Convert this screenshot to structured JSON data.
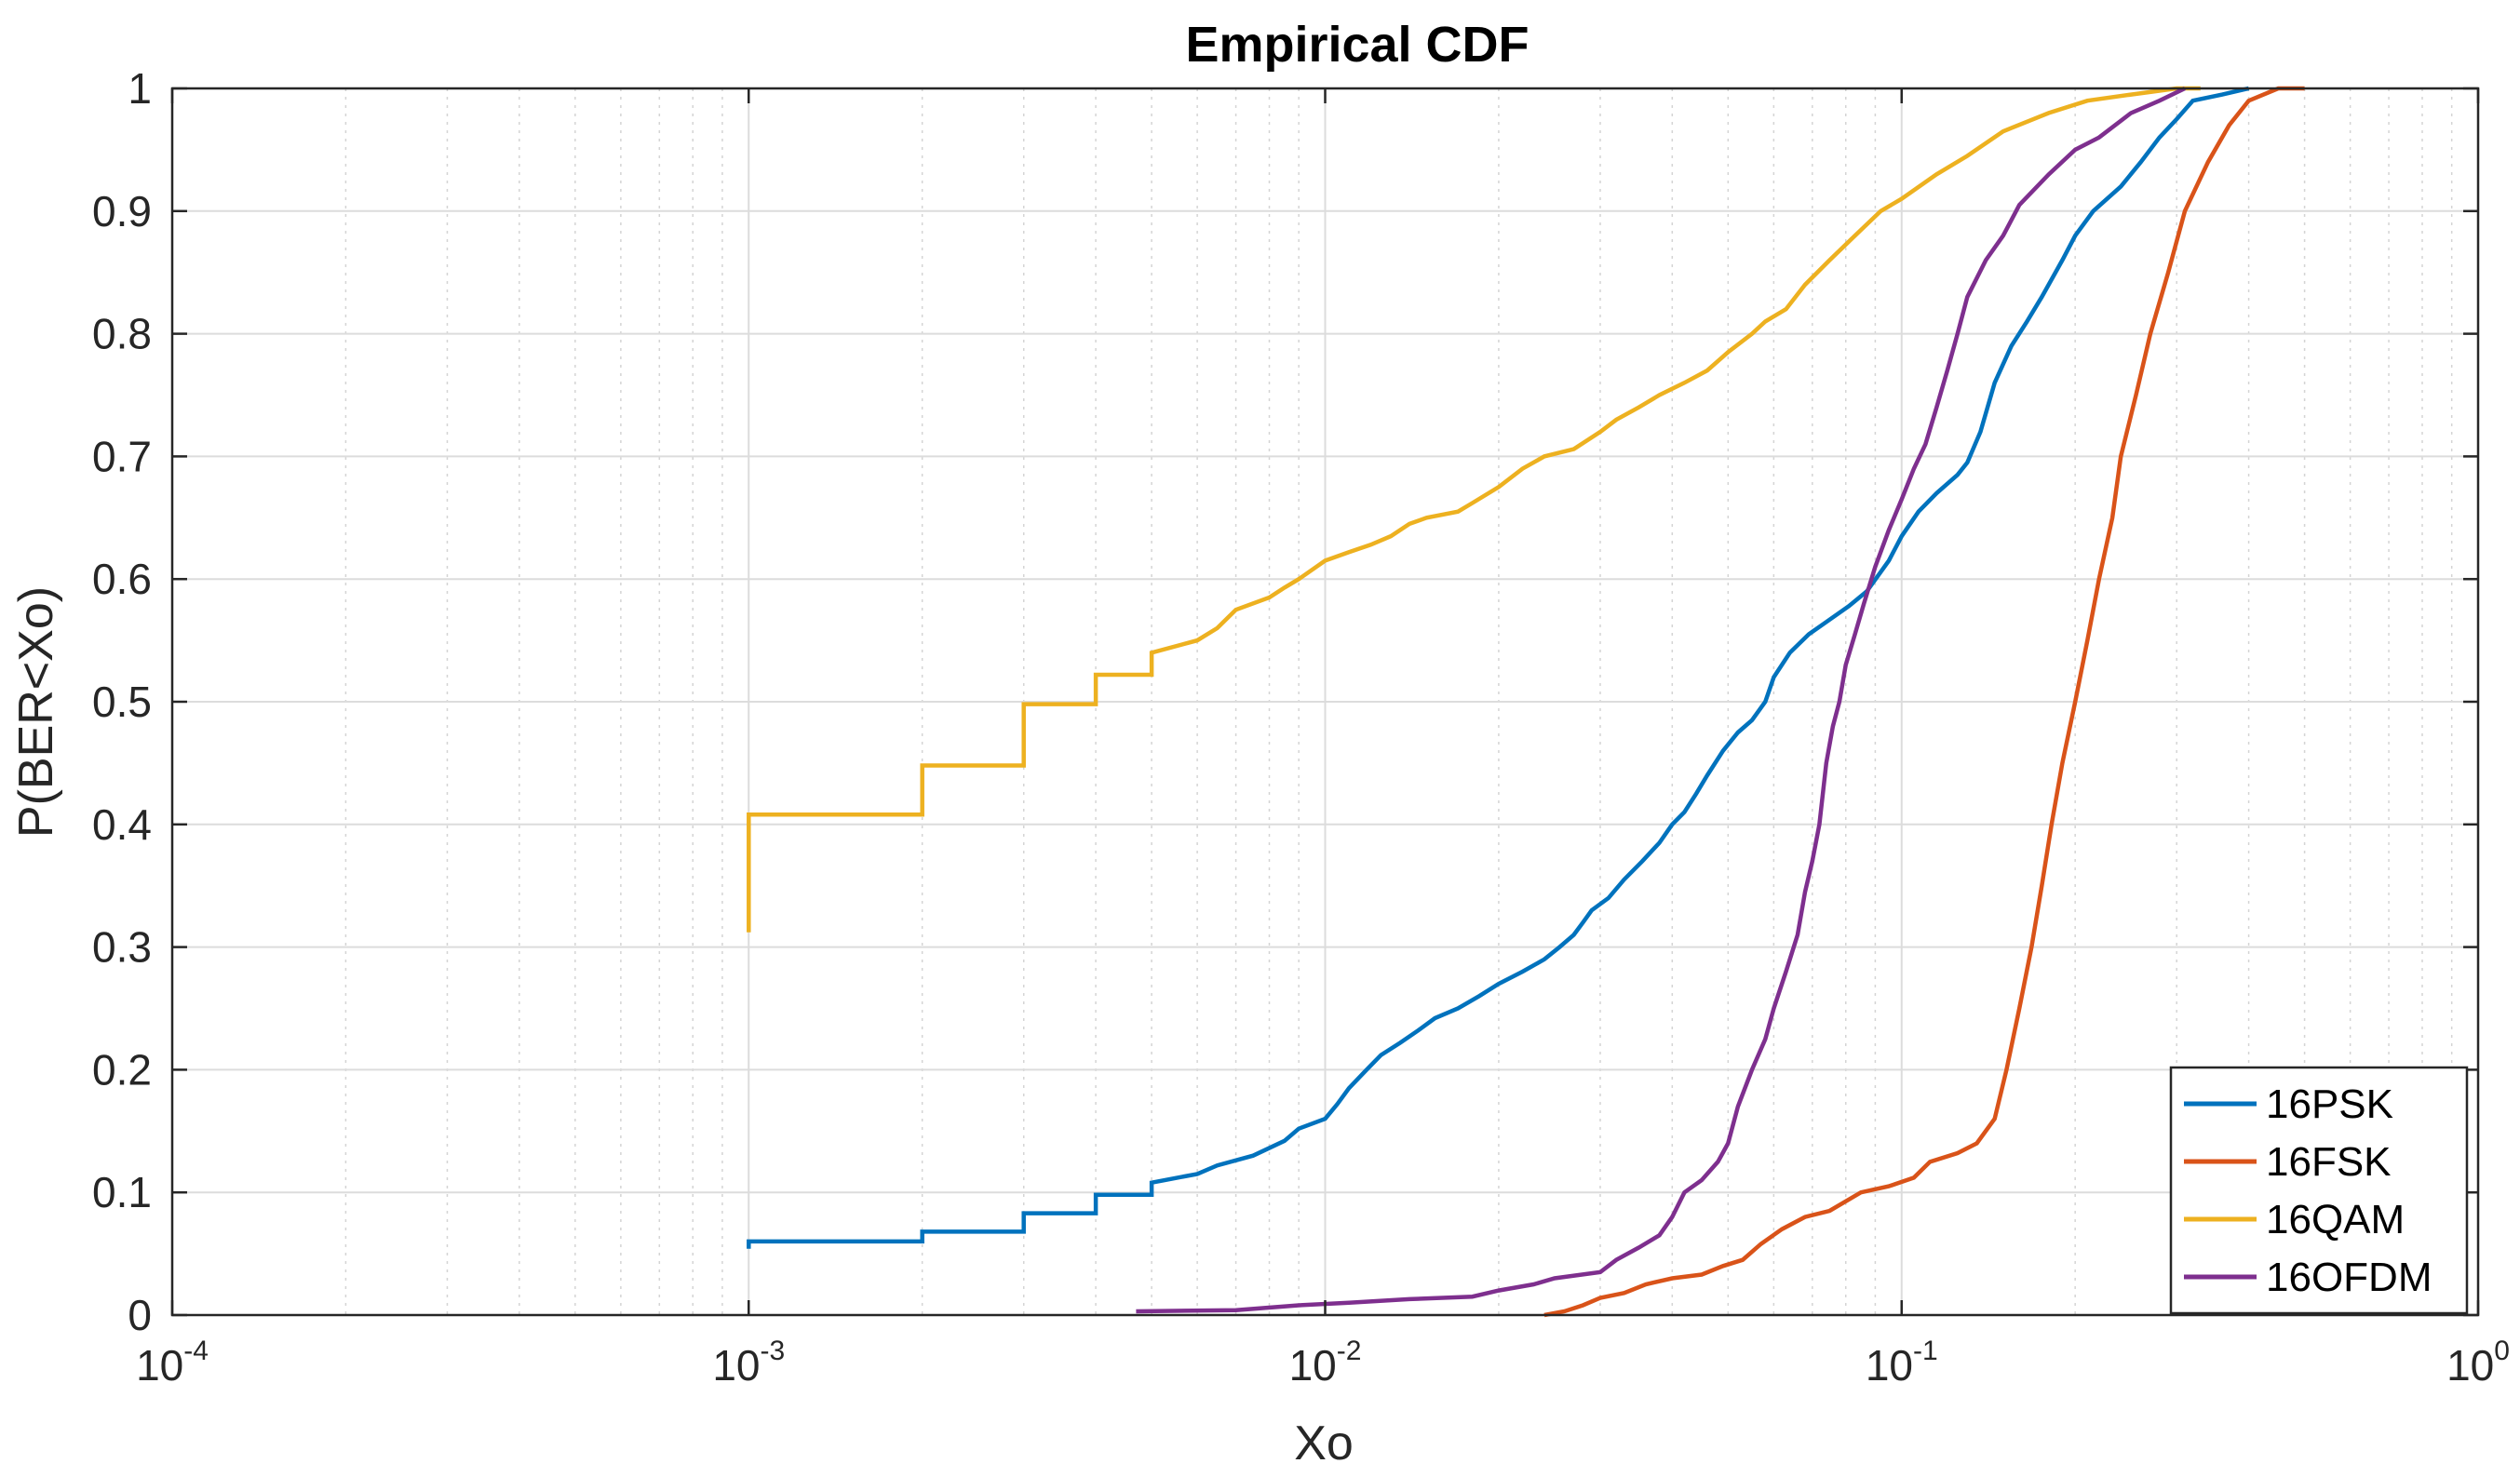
{
  "chart_data": {
    "type": "line",
    "title": "Empirical CDF",
    "xlabel": "Xo",
    "ylabel": "P(BER<Xo)",
    "xscale": "log",
    "xlim": [
      0.0001,
      1
    ],
    "ylim": [
      0,
      1
    ],
    "grid": true,
    "legend_position": "bottom-right",
    "x_ticks": [
      {
        "value": 0.0001,
        "base": "10",
        "exponent": "-4"
      },
      {
        "value": 0.001,
        "base": "10",
        "exponent": "-3"
      },
      {
        "value": 0.01,
        "base": "10",
        "exponent": "-2"
      },
      {
        "value": 0.1,
        "base": "10",
        "exponent": "-1"
      },
      {
        "value": 1,
        "base": "10",
        "exponent": "0"
      }
    ],
    "y_ticks": [
      {
        "value": 0,
        "label": "0"
      },
      {
        "value": 0.1,
        "label": "0.1"
      },
      {
        "value": 0.2,
        "label": "0.2"
      },
      {
        "value": 0.3,
        "label": "0.3"
      },
      {
        "value": 0.4,
        "label": "0.4"
      },
      {
        "value": 0.5,
        "label": "0.5"
      },
      {
        "value": 0.6,
        "label": "0.6"
      },
      {
        "value": 0.7,
        "label": "0.7"
      },
      {
        "value": 0.8,
        "label": "0.8"
      },
      {
        "value": 0.9,
        "label": "0.9"
      },
      {
        "value": 1,
        "label": "1"
      }
    ],
    "series": [
      {
        "name": "16PSK",
        "color": "#0072BD",
        "points": [
          [
            0.001,
            0.054
          ],
          [
            0.001,
            0.06
          ],
          [
            0.002,
            0.06
          ],
          [
            0.002,
            0.068
          ],
          [
            0.003,
            0.068
          ],
          [
            0.003,
            0.083
          ],
          [
            0.004,
            0.083
          ],
          [
            0.004,
            0.098
          ],
          [
            0.005,
            0.098
          ],
          [
            0.005,
            0.108
          ],
          [
            0.006,
            0.115
          ],
          [
            0.0065,
            0.122
          ],
          [
            0.0075,
            0.13
          ],
          [
            0.0085,
            0.142
          ],
          [
            0.009,
            0.152
          ],
          [
            0.01,
            0.16
          ],
          [
            0.0105,
            0.172
          ],
          [
            0.011,
            0.185
          ],
          [
            0.0118,
            0.2
          ],
          [
            0.0125,
            0.212
          ],
          [
            0.0135,
            0.222
          ],
          [
            0.0145,
            0.232
          ],
          [
            0.0155,
            0.242
          ],
          [
            0.017,
            0.25
          ],
          [
            0.0185,
            0.26
          ],
          [
            0.02,
            0.27
          ],
          [
            0.022,
            0.28
          ],
          [
            0.024,
            0.29
          ],
          [
            0.0255,
            0.3
          ],
          [
            0.027,
            0.31
          ],
          [
            0.028,
            0.32
          ],
          [
            0.029,
            0.33
          ],
          [
            0.031,
            0.34
          ],
          [
            0.033,
            0.355
          ],
          [
            0.0355,
            0.37
          ],
          [
            0.038,
            0.385
          ],
          [
            0.04,
            0.4
          ],
          [
            0.042,
            0.41
          ],
          [
            0.044,
            0.425
          ],
          [
            0.046,
            0.44
          ],
          [
            0.049,
            0.46
          ],
          [
            0.052,
            0.475
          ],
          [
            0.055,
            0.485
          ],
          [
            0.058,
            0.5
          ],
          [
            0.06,
            0.52
          ],
          [
            0.064,
            0.54
          ],
          [
            0.069,
            0.555
          ],
          [
            0.074,
            0.565
          ],
          [
            0.081,
            0.578
          ],
          [
            0.087,
            0.59
          ],
          [
            0.095,
            0.615
          ],
          [
            0.1,
            0.635
          ],
          [
            0.107,
            0.655
          ],
          [
            0.115,
            0.67
          ],
          [
            0.125,
            0.685
          ],
          [
            0.13,
            0.695
          ],
          [
            0.137,
            0.72
          ],
          [
            0.145,
            0.76
          ],
          [
            0.155,
            0.79
          ],
          [
            0.165,
            0.81
          ],
          [
            0.175,
            0.83
          ],
          [
            0.19,
            0.86
          ],
          [
            0.2,
            0.88
          ],
          [
            0.215,
            0.9
          ],
          [
            0.24,
            0.92
          ],
          [
            0.26,
            0.94
          ],
          [
            0.28,
            0.96
          ],
          [
            0.3,
            0.975
          ],
          [
            0.32,
            0.99
          ],
          [
            0.36,
            0.995
          ],
          [
            0.4,
            1.0
          ]
        ]
      },
      {
        "name": "16FSK",
        "color": "#D95319",
        "points": [
          [
            0.024,
            0.0
          ],
          [
            0.026,
            0.003
          ],
          [
            0.028,
            0.008
          ],
          [
            0.03,
            0.014
          ],
          [
            0.033,
            0.018
          ],
          [
            0.036,
            0.025
          ],
          [
            0.04,
            0.03
          ],
          [
            0.045,
            0.033
          ],
          [
            0.049,
            0.04
          ],
          [
            0.053,
            0.045
          ],
          [
            0.057,
            0.058
          ],
          [
            0.062,
            0.07
          ],
          [
            0.068,
            0.08
          ],
          [
            0.075,
            0.085
          ],
          [
            0.085,
            0.1
          ],
          [
            0.095,
            0.105
          ],
          [
            0.105,
            0.112
          ],
          [
            0.112,
            0.125
          ],
          [
            0.125,
            0.132
          ],
          [
            0.135,
            0.14
          ],
          [
            0.145,
            0.16
          ],
          [
            0.152,
            0.2
          ],
          [
            0.16,
            0.25
          ],
          [
            0.168,
            0.3
          ],
          [
            0.175,
            0.35
          ],
          [
            0.182,
            0.4
          ],
          [
            0.19,
            0.45
          ],
          [
            0.2,
            0.5
          ],
          [
            0.21,
            0.55
          ],
          [
            0.22,
            0.6
          ],
          [
            0.232,
            0.65
          ],
          [
            0.24,
            0.7
          ],
          [
            0.255,
            0.75
          ],
          [
            0.27,
            0.8
          ],
          [
            0.29,
            0.85
          ],
          [
            0.31,
            0.9
          ],
          [
            0.34,
            0.94
          ],
          [
            0.37,
            0.97
          ],
          [
            0.4,
            0.99
          ],
          [
            0.45,
            1.0
          ],
          [
            0.5,
            1.0
          ]
        ]
      },
      {
        "name": "16QAM",
        "color": "#EDB120",
        "points": [
          [
            0.001,
            0.312
          ],
          [
            0.001,
            0.408
          ],
          [
            0.002,
            0.408
          ],
          [
            0.002,
            0.448
          ],
          [
            0.003,
            0.448
          ],
          [
            0.003,
            0.498
          ],
          [
            0.004,
            0.498
          ],
          [
            0.004,
            0.522
          ],
          [
            0.005,
            0.522
          ],
          [
            0.005,
            0.54
          ],
          [
            0.006,
            0.55
          ],
          [
            0.0065,
            0.56
          ],
          [
            0.007,
            0.575
          ],
          [
            0.008,
            0.585
          ],
          [
            0.0085,
            0.593
          ],
          [
            0.009,
            0.6
          ],
          [
            0.01,
            0.615
          ],
          [
            0.011,
            0.622
          ],
          [
            0.012,
            0.628
          ],
          [
            0.013,
            0.635
          ],
          [
            0.014,
            0.645
          ],
          [
            0.015,
            0.65
          ],
          [
            0.017,
            0.655
          ],
          [
            0.018,
            0.662
          ],
          [
            0.02,
            0.675
          ],
          [
            0.022,
            0.69
          ],
          [
            0.024,
            0.7
          ],
          [
            0.027,
            0.706
          ],
          [
            0.03,
            0.72
          ],
          [
            0.032,
            0.73
          ],
          [
            0.035,
            0.74
          ],
          [
            0.038,
            0.75
          ],
          [
            0.042,
            0.76
          ],
          [
            0.046,
            0.77
          ],
          [
            0.05,
            0.785
          ],
          [
            0.055,
            0.8
          ],
          [
            0.058,
            0.81
          ],
          [
            0.063,
            0.82
          ],
          [
            0.068,
            0.84
          ],
          [
            0.075,
            0.86
          ],
          [
            0.083,
            0.88
          ],
          [
            0.092,
            0.9
          ],
          [
            0.1,
            0.91
          ],
          [
            0.115,
            0.93
          ],
          [
            0.13,
            0.945
          ],
          [
            0.15,
            0.965
          ],
          [
            0.18,
            0.98
          ],
          [
            0.21,
            0.99
          ],
          [
            0.25,
            0.995
          ],
          [
            0.3,
            1.0
          ],
          [
            0.33,
            1.0
          ]
        ]
      },
      {
        "name": "16OFDM",
        "color": "#7E2F8E",
        "points": [
          [
            0.0047,
            0.003
          ],
          [
            0.007,
            0.004
          ],
          [
            0.009,
            0.008
          ],
          [
            0.011,
            0.01
          ],
          [
            0.014,
            0.013
          ],
          [
            0.018,
            0.015
          ],
          [
            0.02,
            0.02
          ],
          [
            0.023,
            0.025
          ],
          [
            0.025,
            0.03
          ],
          [
            0.03,
            0.035
          ],
          [
            0.032,
            0.045
          ],
          [
            0.035,
            0.055
          ],
          [
            0.038,
            0.065
          ],
          [
            0.04,
            0.08
          ],
          [
            0.042,
            0.1
          ],
          [
            0.045,
            0.11
          ],
          [
            0.048,
            0.125
          ],
          [
            0.05,
            0.14
          ],
          [
            0.052,
            0.17
          ],
          [
            0.055,
            0.2
          ],
          [
            0.058,
            0.225
          ],
          [
            0.06,
            0.25
          ],
          [
            0.063,
            0.28
          ],
          [
            0.066,
            0.31
          ],
          [
            0.068,
            0.345
          ],
          [
            0.07,
            0.37
          ],
          [
            0.072,
            0.4
          ],
          [
            0.074,
            0.45
          ],
          [
            0.076,
            0.48
          ],
          [
            0.078,
            0.5
          ],
          [
            0.08,
            0.53
          ],
          [
            0.083,
            0.555
          ],
          [
            0.086,
            0.58
          ],
          [
            0.09,
            0.61
          ],
          [
            0.095,
            0.64
          ],
          [
            0.1,
            0.665
          ],
          [
            0.105,
            0.69
          ],
          [
            0.11,
            0.71
          ],
          [
            0.115,
            0.74
          ],
          [
            0.12,
            0.77
          ],
          [
            0.125,
            0.8
          ],
          [
            0.13,
            0.83
          ],
          [
            0.14,
            0.86
          ],
          [
            0.15,
            0.88
          ],
          [
            0.16,
            0.905
          ],
          [
            0.18,
            0.93
          ],
          [
            0.2,
            0.95
          ],
          [
            0.22,
            0.96
          ],
          [
            0.25,
            0.98
          ],
          [
            0.28,
            0.99
          ],
          [
            0.31,
            1.0
          ]
        ]
      }
    ]
  }
}
